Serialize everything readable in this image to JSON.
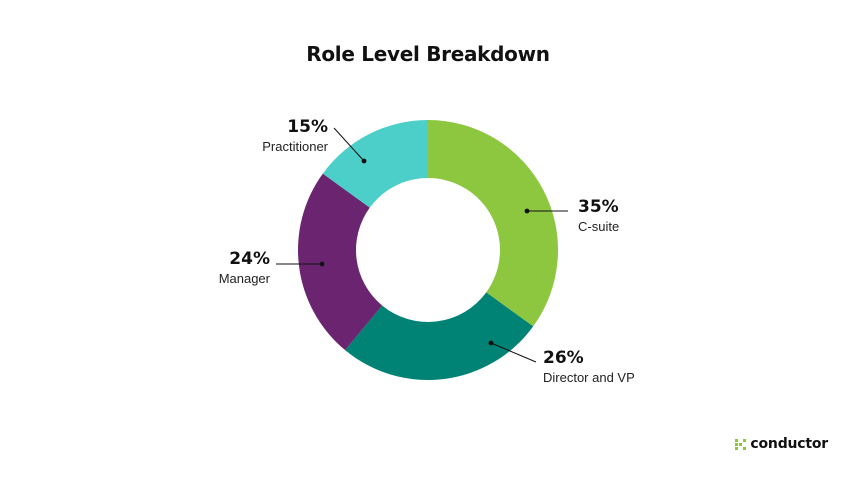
{
  "chart_data": {
    "type": "pie",
    "title": "Role Level Breakdown",
    "donut": true,
    "slices": [
      {
        "label": "C-suite",
        "value": 35,
        "value_label": "35%",
        "color": "#8dc63f"
      },
      {
        "label": "Director and VP",
        "value": 26,
        "value_label": "26%",
        "color": "#008375"
      },
      {
        "label": "Manager",
        "value": 24,
        "value_label": "24%",
        "color": "#6b2570"
      },
      {
        "label": "Practitioner",
        "value": 15,
        "value_label": "15%",
        "color": "#4bcfc8"
      }
    ]
  },
  "brand": {
    "logo_text": "conductor",
    "logo_color": "#8cc63f"
  }
}
